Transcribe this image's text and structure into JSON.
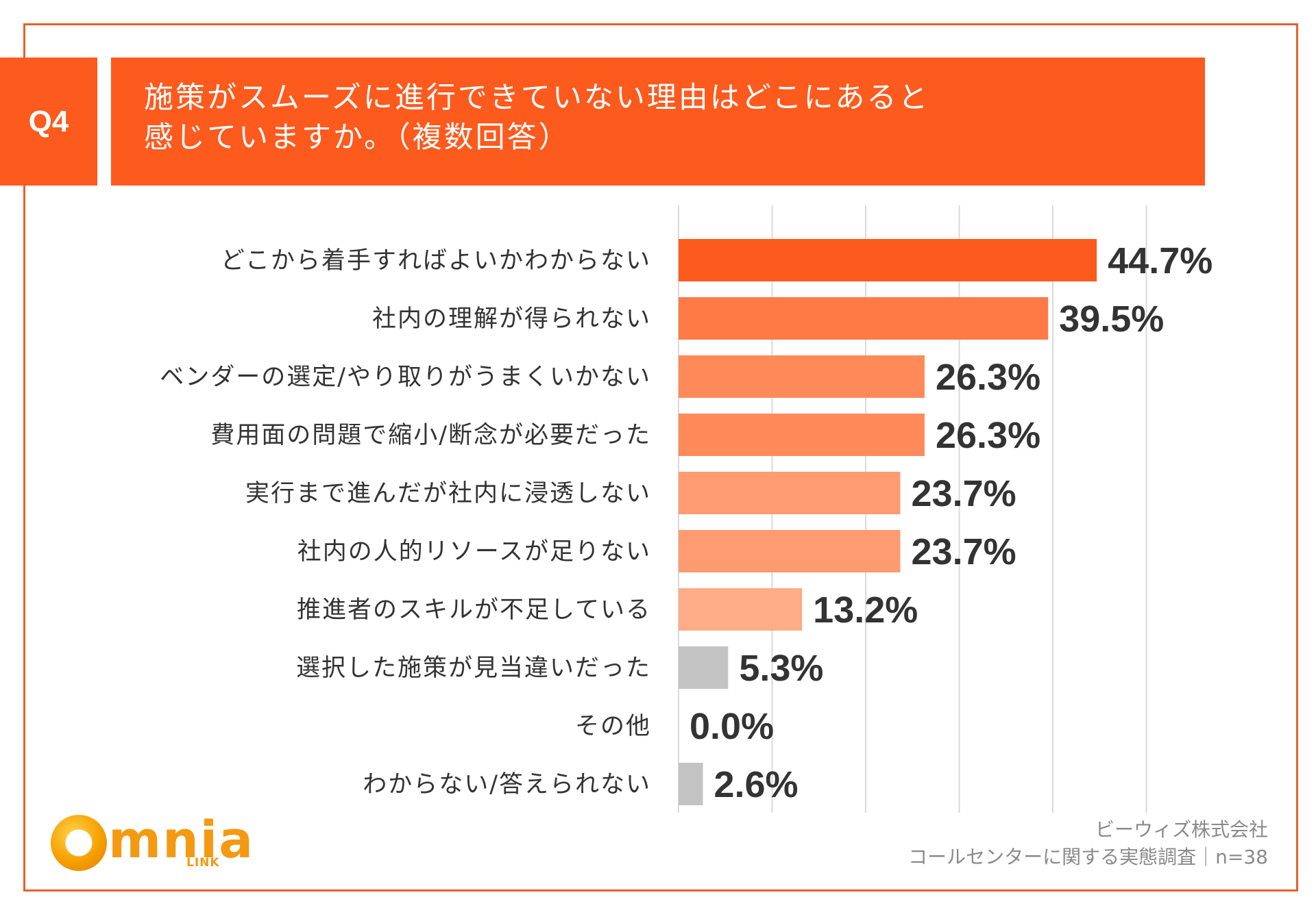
{
  "question": {
    "badge": "Q4",
    "title_line1": "施策がスムーズに進行できていない理由はどこにあると",
    "title_line2": "感じていますか。（複数回答）"
  },
  "chart_data": {
    "type": "bar",
    "orientation": "horizontal",
    "title": "施策がスムーズに進行できていない理由はどこにあると感じていますか。（複数回答）",
    "categories": [
      "どこから着手すればよいかわからない",
      "社内の理解が得られない",
      "ベンダーの選定/やり取りがうまくいかない",
      "費用面の問題で縮小/断念が必要だった",
      "実行まで進んだが社内に浸透しない",
      "社内の人的リソースが足りない",
      "推進者のスキルが不足している",
      "選択した施策が見当違いだった",
      "その他",
      "わからない/答えられない"
    ],
    "values": [
      44.7,
      39.5,
      26.3,
      26.3,
      23.7,
      23.7,
      13.2,
      5.3,
      0.0,
      2.6
    ],
    "value_labels": [
      "44.7%",
      "39.5%",
      "26.3%",
      "26.3%",
      "23.7%",
      "23.7%",
      "13.2%",
      "5.3%",
      "0.0%",
      "2.6%"
    ],
    "colors": [
      "#fd5a1e",
      "#ff7a45",
      "#ff8a59",
      "#ff8a59",
      "#ff9b70",
      "#ff9b70",
      "#ffac88",
      "#c3c3c3",
      "#c3c3c3",
      "#c3c3c3"
    ],
    "xlim": [
      0,
      50
    ],
    "grid": true,
    "xlabel": "",
    "ylabel": ""
  },
  "logo": {
    "name": "mnia",
    "sub": "LINK"
  },
  "source": {
    "company": "ビーウィズ株式会社",
    "survey": "コールセンターに関する実態調査｜n=38"
  }
}
